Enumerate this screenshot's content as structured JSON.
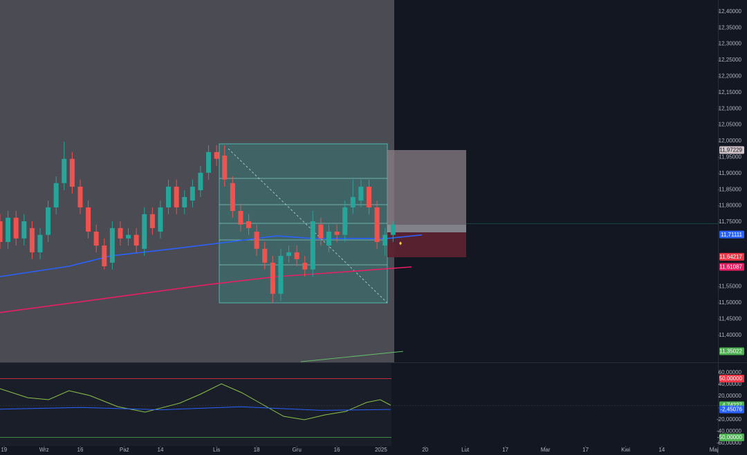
{
  "chart_data": [
    {
      "type": "candlestick",
      "x": [
        0,
        2,
        4,
        6,
        8,
        10,
        12,
        14,
        16,
        18,
        20,
        22,
        24,
        26,
        28,
        30,
        32,
        34,
        36,
        38,
        40,
        42,
        44,
        46,
        48,
        50,
        52,
        54,
        56,
        58,
        60,
        62,
        64,
        66,
        68,
        70,
        72,
        74,
        76,
        78,
        80,
        82,
        84,
        86,
        88,
        90,
        92,
        94,
        96,
        98
      ],
      "open": [
        11.752,
        11.688,
        11.763,
        11.699,
        11.731,
        11.656,
        11.71,
        11.795,
        11.87,
        11.945,
        11.859,
        11.795,
        11.72,
        11.677,
        11.624,
        11.731,
        11.699,
        11.71,
        11.667,
        11.774,
        11.72,
        11.795,
        11.859,
        11.795,
        11.816,
        11.848,
        11.902,
        11.966,
        11.955,
        11.87,
        11.784,
        11.752,
        11.72,
        11.667,
        11.624,
        11.528,
        11.645,
        11.656,
        11.624,
        11.603,
        11.742,
        11.677,
        11.72,
        11.71,
        11.795,
        11.816,
        11.859,
        11.795,
        11.677,
        11.71
      ],
      "high": [
        11.774,
        11.784,
        11.784,
        11.774,
        11.752,
        11.731,
        11.816,
        11.891,
        11.998,
        11.966,
        11.881,
        11.816,
        11.742,
        11.699,
        11.752,
        11.752,
        11.731,
        11.731,
        11.795,
        11.795,
        11.816,
        11.881,
        11.881,
        11.848,
        11.881,
        11.923,
        11.987,
        11.987,
        11.987,
        11.891,
        11.806,
        11.774,
        11.742,
        11.688,
        11.645,
        11.667,
        11.677,
        11.677,
        11.645,
        11.784,
        11.763,
        11.742,
        11.742,
        11.816,
        11.881,
        11.881,
        11.881,
        11.816,
        11.731,
        11.752
      ],
      "low": [
        11.667,
        11.667,
        11.677,
        11.677,
        11.635,
        11.635,
        11.688,
        11.774,
        11.848,
        11.838,
        11.774,
        11.699,
        11.656,
        11.603,
        11.603,
        11.677,
        11.677,
        11.656,
        11.645,
        11.71,
        11.699,
        11.774,
        11.774,
        11.774,
        11.795,
        11.827,
        11.881,
        11.923,
        11.859,
        11.763,
        11.72,
        11.71,
        11.645,
        11.603,
        11.5,
        11.506,
        11.624,
        11.613,
        11.581,
        11.581,
        11.677,
        11.656,
        11.688,
        11.688,
        11.774,
        11.795,
        11.774,
        11.667,
        11.645,
        11.688
      ],
      "close": [
        11.688,
        11.763,
        11.699,
        11.752,
        11.656,
        11.71,
        11.795,
        11.87,
        11.945,
        11.859,
        11.795,
        11.72,
        11.677,
        11.613,
        11.731,
        11.699,
        11.71,
        11.677,
        11.774,
        11.731,
        11.795,
        11.859,
        11.795,
        11.827,
        11.859,
        11.902,
        11.966,
        11.945,
        11.881,
        11.784,
        11.742,
        11.731,
        11.667,
        11.624,
        11.528,
        11.645,
        11.656,
        11.635,
        11.603,
        11.752,
        11.699,
        11.72,
        11.71,
        11.795,
        11.827,
        11.859,
        11.795,
        11.688,
        11.71,
        11.742
      ],
      "up_color": "#26a69a",
      "down_color": "#ef5350",
      "lines": [
        {
          "color": "#2962ff",
          "x": [
            0,
            17.2,
            27.6,
            43.1,
            56.9,
            63.8,
            69,
            77.6,
            86.2,
            96.6,
            105.2
          ],
          "values": [
            11.581,
            11.613,
            11.645,
            11.667,
            11.688,
            11.699,
            11.707,
            11.699,
            11.699,
            11.699,
            11.71
          ]
        },
        {
          "color": "#e91e63",
          "x": [
            0,
            25.9,
            51.7,
            69,
            86.2,
            102.6
          ],
          "values": [
            11.47,
            11.513,
            11.556,
            11.581,
            11.596,
            11.611
          ]
        },
        {
          "color": "#66bb6a",
          "x": [
            75,
            100.5
          ],
          "values": [
            11.318,
            11.35
          ]
        }
      ],
      "price_labels": [
        {
          "value": 11.97229,
          "label": "11,97229",
          "color": "#d1c4c9",
          "text_color": "#131722"
        },
        {
          "value": 11.71111,
          "label": "11,71111",
          "color": "#2962ff",
          "text_color": "#ffffff"
        },
        {
          "value": 11.64217,
          "label": "11,64217",
          "color": "#f23645",
          "text_color": "#ffffff"
        },
        {
          "value": 11.61087,
          "label": "11,61087",
          "color": "#e91e63",
          "text_color": "#ffffff"
        },
        {
          "value": 11.35022,
          "label": "11,35022",
          "color": "#4caf50",
          "text_color": "#ffffff"
        }
      ],
      "xlim": [
        0,
        179
      ],
      "ylim": [
        11.316,
        12.436
      ],
      "yticks": [
        {
          "value": 12.4,
          "label": "12,40000"
        },
        {
          "value": 12.35,
          "label": "12,35000"
        },
        {
          "value": 12.3,
          "label": "12,30000"
        },
        {
          "value": 12.25,
          "label": "12,25000"
        },
        {
          "value": 12.2,
          "label": "12,20000"
        },
        {
          "value": 12.15,
          "label": "12,15000"
        },
        {
          "value": 12.1,
          "label": "12,10000"
        },
        {
          "value": 12.05,
          "label": "12,05000"
        },
        {
          "value": 12,
          "label": "12,00000"
        },
        {
          "value": 11.95,
          "label": "11,95000"
        },
        {
          "value": 11.9,
          "label": "11,90000"
        },
        {
          "value": 11.85,
          "label": "11,85000"
        },
        {
          "value": 11.8,
          "label": "11,80000"
        },
        {
          "value": 11.75,
          "label": "11,75000"
        },
        {
          "value": 11.55,
          "label": "11,55000"
        },
        {
          "value": 11.5,
          "label": "11,50000"
        },
        {
          "value": 11.45,
          "label": "11,45000"
        },
        {
          "value": 11.4,
          "label": "11,40000"
        }
      ]
    },
    {
      "type": "line",
      "lines": [
        {
          "color": "#8bc34a",
          "x": [
            0,
            6.9,
            12.1,
            17.2,
            22.4,
            29.3,
            36.2,
            44.8,
            50,
            55.2,
            60.3,
            65.5,
            70.7,
            75.9,
            81,
            86.2,
            91.4,
            94.8,
            97.4
          ],
          "values": [
            32.9,
            17.6,
            14.1,
            29.4,
            21.2,
            2.4,
            -7.1,
            8.2,
            23.5,
            41.2,
            25.9,
            5.9,
            -14.1,
            -20,
            -11.8,
            -5.9,
            9.4,
            14.1,
            4.7
          ]
        },
        {
          "color": "#2962ff",
          "x": [
            0,
            20,
            40,
            60,
            80,
            97.4
          ],
          "values": [
            -2,
            1,
            -3,
            2,
            -4,
            -2.45
          ]
        }
      ],
      "price_labels": [
        {
          "value": 50,
          "label": "50,00000",
          "color": "#f23645",
          "text_color": "#ffffff",
          "line": true
        },
        {
          "value": 4.74227,
          "label": "4,74227",
          "color": "#4caf50",
          "text_color": "#ffffff"
        },
        {
          "value": -2.45076,
          "label": "-2,45076",
          "color": "#2962ff",
          "text_color": "#ffffff"
        },
        {
          "value": -50,
          "label": "-50,00000",
          "color": "#4caf50",
          "text_color": "#ffffff",
          "line": true
        }
      ],
      "xlim": [
        0,
        179
      ],
      "ylim": [
        -80,
        76.5
      ],
      "yticks": [
        {
          "value": 60,
          "label": "60,00000"
        },
        {
          "value": 40,
          "label": "40,00000"
        },
        {
          "value": 20,
          "label": "20,00000"
        },
        {
          "value": 0,
          "label": "0,00000"
        },
        {
          "value": -20,
          "label": "-20,00000"
        },
        {
          "value": -40,
          "label": "-40,00000"
        },
        {
          "value": -60,
          "label": "-60,00000"
        }
      ],
      "xticks": [
        {
          "value": 1,
          "label": "19"
        },
        {
          "value": 11,
          "label": "Wrz"
        },
        {
          "value": 20,
          "label": "16"
        },
        {
          "value": 31,
          "label": "Paź"
        },
        {
          "value": 40,
          "label": "14"
        },
        {
          "value": 54,
          "label": "Lis"
        },
        {
          "value": 64,
          "label": "18"
        },
        {
          "value": 74,
          "label": "Gru"
        },
        {
          "value": 84,
          "label": "16"
        },
        {
          "value": 95,
          "label": "2025"
        },
        {
          "value": 106,
          "label": "20"
        },
        {
          "value": 116,
          "label": "Lut"
        },
        {
          "value": 126,
          "label": "17"
        },
        {
          "value": 136,
          "label": "Mar"
        },
        {
          "value": 146,
          "label": "17"
        },
        {
          "value": 156,
          "label": "Kwi"
        },
        {
          "value": 165,
          "label": "14"
        },
        {
          "value": 178,
          "label": "Maj"
        }
      ]
    }
  ]
}
